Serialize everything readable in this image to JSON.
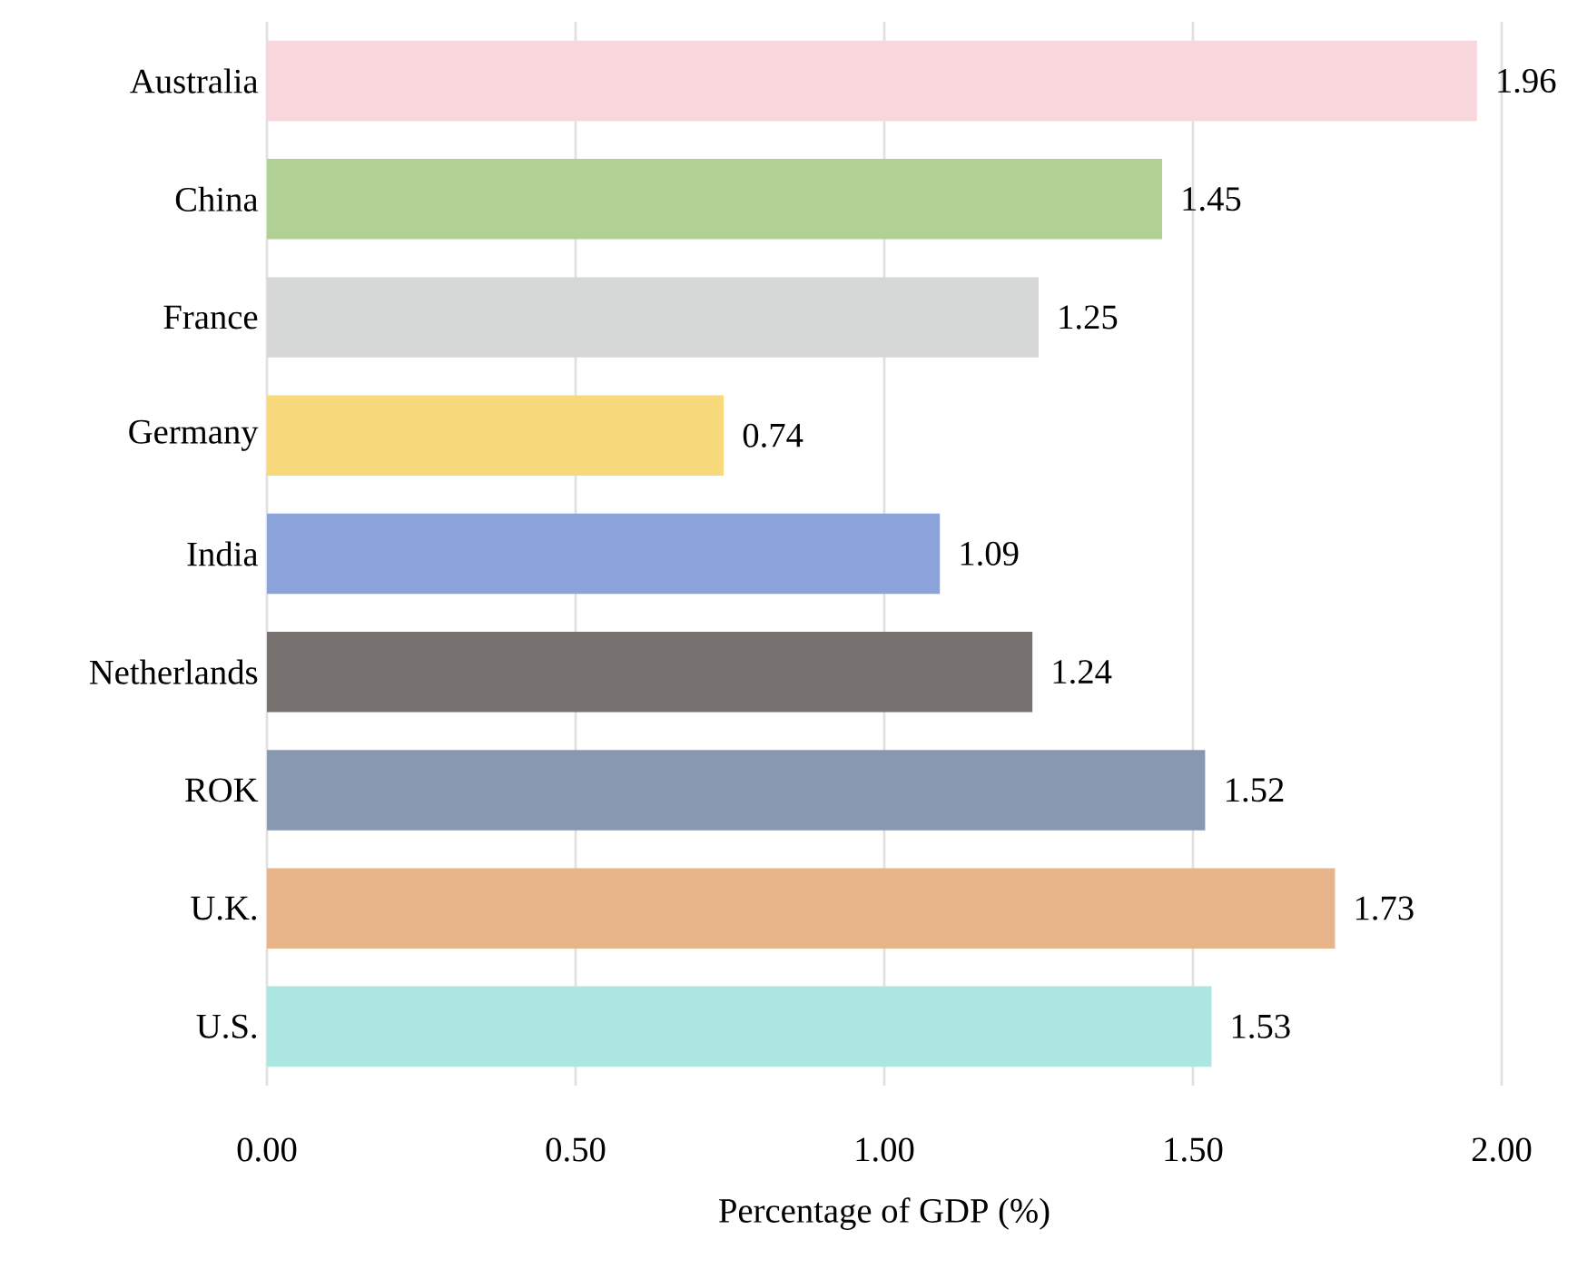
{
  "chart_data": {
    "type": "bar",
    "orientation": "horizontal",
    "xlabel": "Percentage of GDP (%)",
    "categories": [
      "Australia",
      "China",
      "France",
      "Germany",
      "India",
      "Netherlands",
      "ROK",
      "U.K.",
      "U.S."
    ],
    "values": [
      1.96,
      1.45,
      1.25,
      0.74,
      1.09,
      1.24,
      1.52,
      1.73,
      1.53
    ],
    "colors": [
      "#f7d6dc",
      "#b1d194",
      "#d6d7d7",
      "#f7d87b",
      "#8ba2da",
      "#76706f",
      "#8898b0",
      "#e8b48a",
      "#ace6e0"
    ],
    "xlim": [
      0,
      2
    ],
    "xticks": [
      {
        "value": 0,
        "label": "0.00"
      },
      {
        "value": 0.5,
        "label": "0.50"
      },
      {
        "value": 1,
        "label": "1.00"
      },
      {
        "value": 1.5,
        "label": "1.50"
      },
      {
        "value": 2,
        "label": "2.00"
      }
    ],
    "grid": "x",
    "data_labels": true
  }
}
